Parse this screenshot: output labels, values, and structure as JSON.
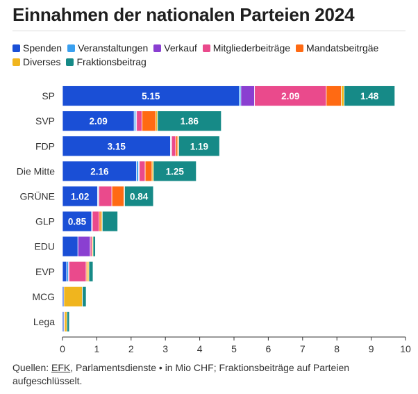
{
  "chart_data": {
    "type": "bar",
    "orientation": "horizontal",
    "stacked": true,
    "title": "Einnahmen der nationalen Parteien 2024",
    "categories": [
      "SP",
      "SVP",
      "FDP",
      "Die Mitte",
      "GRÜNE",
      "GLP",
      "EDU",
      "EVP",
      "MCG",
      "Lega"
    ],
    "series": [
      {
        "name": "Spenden",
        "color": "#1a4fd6",
        "values": [
          5.15,
          2.09,
          3.15,
          2.16,
          1.02,
          0.85,
          0.45,
          0.12,
          0.04,
          0.04
        ]
      },
      {
        "name": "Veranstaltungen",
        "color": "#3aa0f0",
        "values": [
          0.05,
          0.05,
          0.02,
          0.06,
          0.02,
          0.01,
          0.0,
          0.05,
          0.0,
          0.0
        ]
      },
      {
        "name": "Verkauf",
        "color": "#8a3fd1",
        "values": [
          0.4,
          0.02,
          0.01,
          0.02,
          0.02,
          0.01,
          0.36,
          0.02,
          0.0,
          0.0
        ]
      },
      {
        "name": "Mitgliederbeiträge",
        "color": "#ea4a8c",
        "values": [
          2.09,
          0.16,
          0.12,
          0.17,
          0.38,
          0.2,
          0.05,
          0.5,
          0.0,
          0.02
        ]
      },
      {
        "name": "Mandatsbeitrgäe",
        "color": "#ff6a13",
        "values": [
          0.44,
          0.4,
          0.06,
          0.2,
          0.35,
          0.05,
          0.0,
          0.03,
          0.0,
          0.0
        ]
      },
      {
        "name": "Diverses",
        "color": "#f0b51e",
        "values": [
          0.08,
          0.05,
          0.03,
          0.04,
          0.02,
          0.04,
          0.03,
          0.05,
          0.54,
          0.07
        ]
      },
      {
        "name": "Fraktionsbeitrag",
        "color": "#168a87",
        "values": [
          1.48,
          1.86,
          1.19,
          1.25,
          0.84,
          0.45,
          0.07,
          0.12,
          0.11,
          0.07
        ]
      }
    ],
    "labels_shown": [
      {
        "category": "SP",
        "series": "Spenden",
        "text": "5.15"
      },
      {
        "category": "SP",
        "series": "Mitgliederbeiträge",
        "text": "2.09"
      },
      {
        "category": "SP",
        "series": "Fraktionsbeitrag",
        "text": "1.48"
      },
      {
        "category": "SVP",
        "series": "Spenden",
        "text": "2.09"
      },
      {
        "category": "SVP",
        "series": "Fraktionsbeitrag",
        "text": "1.86"
      },
      {
        "category": "FDP",
        "series": "Spenden",
        "text": "3.15"
      },
      {
        "category": "FDP",
        "series": "Fraktionsbeitrag",
        "text": "1.19"
      },
      {
        "category": "Die Mitte",
        "series": "Spenden",
        "text": "2.16"
      },
      {
        "category": "Die Mitte",
        "series": "Fraktionsbeitrag",
        "text": "1.25"
      },
      {
        "category": "GRÜNE",
        "series": "Spenden",
        "text": "1.02"
      },
      {
        "category": "GRÜNE",
        "series": "Fraktionsbeitrag",
        "text": "0.84"
      },
      {
        "category": "GLP",
        "series": "Spenden",
        "text": "0.85"
      }
    ],
    "xlim": [
      0,
      10
    ],
    "xticks": [
      0,
      1,
      2,
      3,
      4,
      5,
      6,
      7,
      8,
      9,
      10
    ],
    "xlabel": "",
    "ylabel": "",
    "legend": "top"
  },
  "footer": {
    "prefix": "Quellen: ",
    "link": "EFK",
    "rest": ", Parlamentsdienste • in Mio CHF; Fraktionsbeiträge auf Parteien aufgeschlüsselt."
  }
}
